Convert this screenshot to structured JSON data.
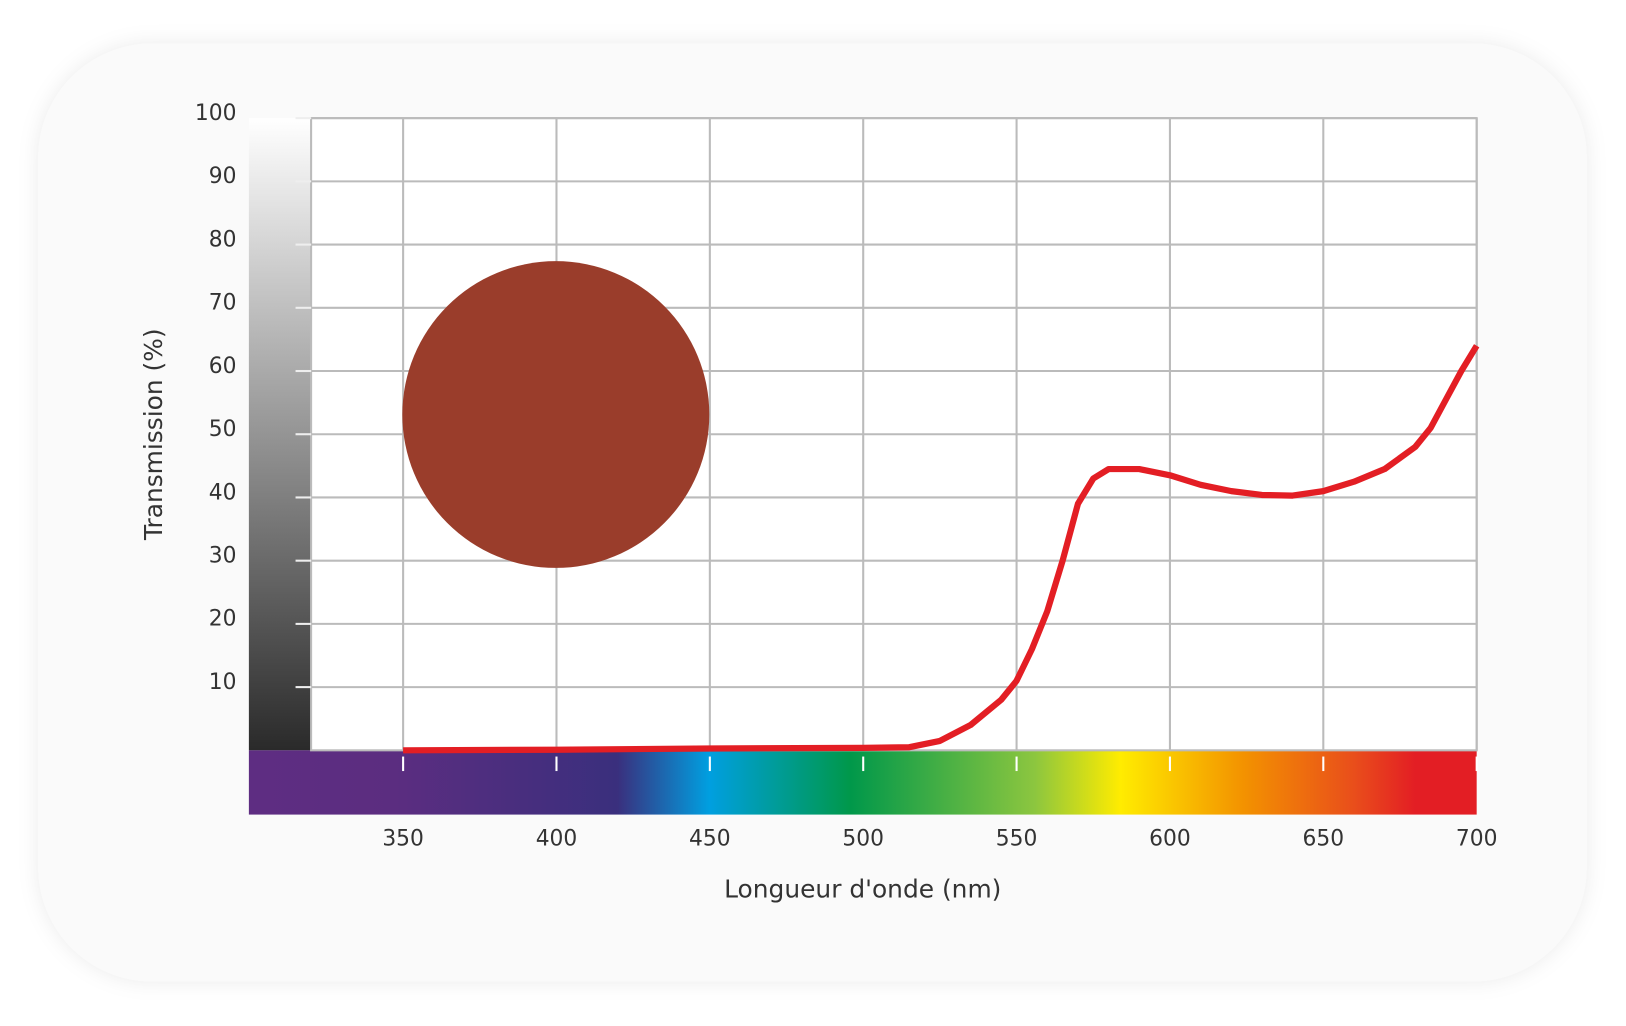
{
  "chart_data": {
    "type": "line",
    "x_label": "Longueur d'onde (nm)",
    "y_label": "Transmission (%)",
    "x": [
      350,
      400,
      450,
      500,
      515,
      525,
      535,
      545,
      550,
      555,
      560,
      565,
      570,
      575,
      580,
      590,
      600,
      610,
      620,
      630,
      640,
      650,
      660,
      670,
      680,
      685,
      690,
      695,
      700
    ],
    "series": [
      {
        "color": "#e31e24",
        "values": [
          0,
          0.1,
          0.3,
          0.4,
          0.5,
          1.5,
          4,
          8,
          11,
          16,
          22,
          30,
          39,
          43,
          44.5,
          44.5,
          43.5,
          42,
          41,
          40.4,
          40.3,
          41,
          42.5,
          44.5,
          48,
          51,
          55.5,
          60,
          64
        ]
      }
    ],
    "xlim": [
      320,
      700
    ],
    "xticks": [
      350,
      400,
      450,
      500,
      550,
      600,
      650,
      700
    ],
    "ylim": [
      0,
      100
    ],
    "yticks": [
      10,
      20,
      30,
      40,
      50,
      60,
      70,
      80,
      90,
      100
    ],
    "grid": true
  }
}
